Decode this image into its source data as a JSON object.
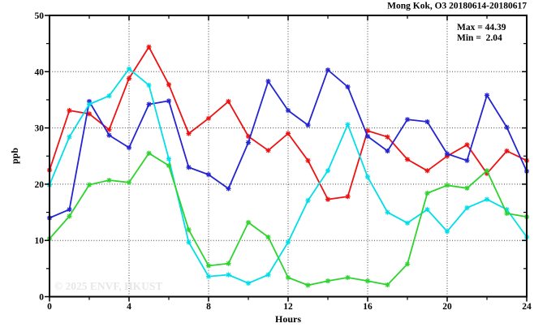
{
  "header": {
    "title": "Mong Kok, O3 20180614-20180617"
  },
  "stats": {
    "max_label": "Max = 44.39",
    "min_label": "Min =  2.04"
  },
  "watermark": "© 2025 ENVF, HKUST",
  "colors": {
    "frame": "#000000",
    "grid": "#444444",
    "red": "#ee1111",
    "blue": "#2424d0",
    "cyan": "#00dfe8",
    "green": "#2ed32e",
    "watermark": "#e7e7e7"
  },
  "chart_data": {
    "type": "line",
    "title": "Mong Kok, O3 20180614-20180617",
    "xlabel": "Hours",
    "ylabel": "ppb",
    "xlim": [
      0,
      24
    ],
    "ylim": [
      0,
      50
    ],
    "xticks_major": [
      0,
      4,
      8,
      12,
      16,
      20,
      24
    ],
    "xticks_minor": [
      2,
      6,
      10,
      14,
      18,
      22
    ],
    "yticks_major": [
      0,
      10,
      20,
      30,
      40,
      50
    ],
    "yticks_minor": [
      5,
      15,
      25,
      35,
      45
    ],
    "grid_x_at": [
      4,
      8,
      12,
      16,
      20
    ],
    "grid_y_at": [
      10,
      20,
      30,
      40
    ],
    "legend": "none",
    "marker": "asterisk",
    "max": 44.39,
    "min": 2.04,
    "x": [
      0,
      1,
      2,
      3,
      4,
      5,
      6,
      7,
      8,
      9,
      10,
      11,
      12,
      13,
      14,
      15,
      16,
      17,
      18,
      19,
      20,
      21,
      22,
      23,
      24
    ],
    "series": [
      {
        "name": "red",
        "color": "#ee1111",
        "values": [
          22.5,
          33.1,
          32.5,
          29.7,
          38.8,
          44.39,
          37.7,
          29.0,
          31.7,
          34.7,
          28.5,
          26.0,
          29.0,
          24.2,
          17.3,
          17.8,
          29.5,
          28.4,
          24.4,
          22.4,
          25.0,
          27.0,
          21.9,
          25.9,
          24.2
        ]
      },
      {
        "name": "blue",
        "color": "#2424d0",
        "values": [
          14.0,
          15.5,
          34.7,
          28.7,
          26.5,
          34.2,
          34.8,
          23.0,
          21.7,
          19.2,
          27.4,
          38.3,
          33.1,
          30.5,
          40.3,
          37.3,
          28.5,
          25.9,
          31.5,
          31.1,
          25.4,
          24.2,
          35.8,
          30.1,
          22.3
        ]
      },
      {
        "name": "cyan",
        "color": "#00dfe8",
        "values": [
          19.9,
          28.4,
          34.2,
          35.7,
          40.5,
          37.6,
          24.5,
          9.7,
          3.6,
          3.9,
          2.4,
          3.9,
          9.7,
          17.1,
          22.4,
          30.6,
          21.3,
          15.0,
          13.1,
          15.5,
          11.6,
          15.8,
          17.3,
          15.5,
          10.6
        ]
      },
      {
        "name": "green",
        "color": "#2ed32e",
        "values": [
          10.3,
          14.3,
          19.9,
          20.7,
          20.3,
          25.5,
          23.3,
          11.9,
          5.5,
          5.9,
          13.2,
          10.6,
          3.4,
          2.04,
          2.8,
          3.4,
          2.8,
          2.1,
          5.8,
          18.4,
          19.8,
          19.3,
          22.4,
          14.8,
          14.2
        ]
      }
    ]
  }
}
